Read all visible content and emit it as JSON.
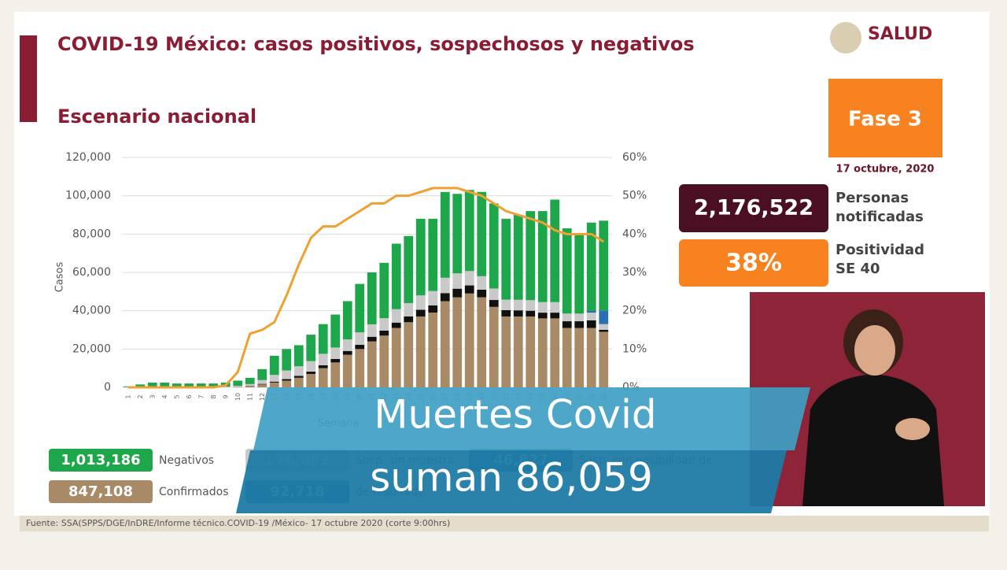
{
  "header": {
    "title": "COVID-19 México: casos positivos, sospechosos y negativos",
    "subtitle": "Escenario nacional",
    "logo": "SALUD"
  },
  "panel": {
    "phase": "Fase 3",
    "date": "17 octubre, 2020",
    "notified": "2,176,522",
    "notified_label": [
      "Personas",
      "notificadas"
    ],
    "positivity": "38%",
    "positivity_label": [
      "Positividad",
      "SE 40"
    ]
  },
  "source": "Fuente: SSA(SPPS/DGE/InDRE/Informe técnico.COVID-19 /México- 17 octubre 2020 (corte 9:00hrs)",
  "caption": [
    "Muertes Covid",
    "suman 86,059"
  ],
  "chart_data": {
    "type": "bar",
    "stacked": true,
    "ylabel": "Casos",
    "xlabel": "Semana",
    "categories": [
      "1",
      "2",
      "3",
      "4",
      "5",
      "6",
      "7",
      "8",
      "9",
      "10",
      "11",
      "12",
      "13",
      "14",
      "15",
      "16",
      "17",
      "18",
      "19",
      "20",
      "21",
      "22",
      "23",
      "24",
      "25",
      "26",
      "27",
      "28",
      "29",
      "30",
      "31",
      "32",
      "33",
      "34",
      "35",
      "36",
      "37",
      "38",
      "39",
      "40"
    ],
    "ylim": [
      0,
      120000
    ],
    "yticks": [
      {
        "value": 0,
        "label": "0"
      },
      {
        "value": 20000,
        "label": "20,000"
      },
      {
        "value": 40000,
        "label": "40,000"
      },
      {
        "value": 60000,
        "label": "60,000"
      },
      {
        "value": 80000,
        "label": "80,000"
      },
      {
        "value": 100000,
        "label": "100,000"
      },
      {
        "value": 120000,
        "label": "120,000"
      }
    ],
    "y2lim": [
      0,
      60
    ],
    "y2ticks": [
      {
        "value": 0,
        "label": "0%"
      },
      {
        "value": 10,
        "label": "10%"
      },
      {
        "value": 20,
        "label": "20%"
      },
      {
        "value": 30,
        "label": "30%"
      },
      {
        "value": 40,
        "label": "40%"
      },
      {
        "value": 50,
        "label": "50%"
      },
      {
        "value": 60,
        "label": "60%"
      }
    ],
    "grid": true,
    "series": [
      {
        "name": "Confirmados",
        "total": "847,108",
        "color": "#a88a66",
        "values": [
          0,
          0,
          0,
          0,
          0,
          0,
          0,
          0,
          100,
          300,
          800,
          1500,
          2500,
          3500,
          5000,
          7000,
          10000,
          13000,
          17000,
          20000,
          24000,
          27000,
          31000,
          34000,
          37000,
          39000,
          45000,
          47000,
          49000,
          47000,
          42000,
          37000,
          37000,
          37000,
          36000,
          36000,
          31000,
          31000,
          31000,
          29000
        ]
      },
      {
        "name": "de resultado",
        "total": "92,718",
        "color": "#111111",
        "values": [
          0,
          0,
          0,
          0,
          0,
          0,
          0,
          0,
          0,
          0,
          100,
          300,
          500,
          800,
          1000,
          1200,
          1500,
          1800,
          2000,
          2200,
          2400,
          2600,
          2800,
          3000,
          3500,
          3800,
          4200,
          4500,
          4200,
          4000,
          3600,
          3300,
          3200,
          3000,
          3000,
          3000,
          3500,
          3500,
          4000,
          1000
        ]
      },
      {
        "name": "Sosp. sin muestra",
        "total": "176,683",
        "color": "#c9c9c9",
        "values": [
          100,
          200,
          200,
          200,
          200,
          200,
          200,
          200,
          300,
          500,
          800,
          2000,
          3500,
          4500,
          5000,
          5500,
          6000,
          6000,
          6000,
          6500,
          6500,
          6500,
          7000,
          7000,
          7500,
          7500,
          8000,
          8000,
          7500,
          7000,
          6000,
          5500,
          5500,
          5500,
          5500,
          5500,
          4000,
          4000,
          4000,
          3000
        ]
      },
      {
        "name": "Sosp. con posibilidad de",
        "total": "46,827",
        "color": "#2a6fb5",
        "values": [
          0,
          0,
          0,
          0,
          0,
          0,
          0,
          0,
          0,
          0,
          0,
          0,
          0,
          0,
          0,
          0,
          0,
          0,
          0,
          0,
          0,
          0,
          0,
          0,
          0,
          0,
          0,
          0,
          0,
          0,
          0,
          0,
          0,
          0,
          0,
          0,
          0,
          0,
          1000,
          7000
        ]
      },
      {
        "name": "Negativos",
        "total": "1,013,186",
        "color": "#1ea64a",
        "values": [
          400,
          1300,
          2300,
          2300,
          1800,
          1800,
          1800,
          1800,
          2100,
          2700,
          3300,
          5700,
          10000,
          11200,
          11000,
          13800,
          15500,
          17200,
          20000,
          25300,
          27100,
          28900,
          34200,
          35000,
          40000,
          37700,
          44800,
          41500,
          42300,
          44000,
          44400,
          42200,
          44300,
          46500,
          47500,
          53500,
          44500,
          41500,
          46000,
          47000
        ]
      },
      {
        "name": "Positividad",
        "axis": "y2",
        "color": "#f0a030",
        "values": [
          0,
          0,
          0,
          0,
          0,
          0,
          0,
          0,
          0.5,
          4,
          14,
          15,
          17,
          24,
          32,
          39,
          42,
          42,
          44,
          46,
          48,
          48,
          50,
          50,
          51,
          52,
          52,
          52,
          51,
          50,
          48,
          46,
          45,
          44,
          43,
          41,
          40,
          40,
          40,
          38
        ]
      }
    ]
  }
}
